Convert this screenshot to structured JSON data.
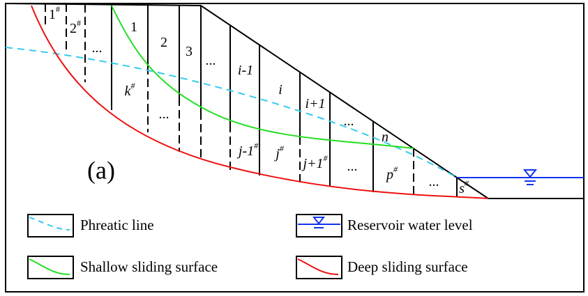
{
  "panel_label": "(a)",
  "upper_slices": [
    {
      "text": "1",
      "sup": "#"
    },
    {
      "text": "2",
      "sup": "#"
    },
    {
      "text": "..."
    },
    {
      "text": "1"
    },
    {
      "text": "2"
    },
    {
      "text": "3"
    },
    {
      "text": "..."
    },
    {
      "text": "i-1"
    },
    {
      "text": "i"
    },
    {
      "text": "i+1"
    },
    {
      "text": "..."
    },
    {
      "text": "n"
    }
  ],
  "lower_slices": [
    {
      "text": "k",
      "sup": "#"
    },
    {
      "text": "..."
    },
    {
      "text": "j-1",
      "sup": "#"
    },
    {
      "text": "j",
      "sup": "#"
    },
    {
      "text": "j+1",
      "sup": "#"
    },
    {
      "text": "..."
    },
    {
      "text": "p",
      "sup": "#"
    },
    {
      "text": "..."
    },
    {
      "text": "s",
      "sup": "#"
    }
  ],
  "legend": [
    "Phreatic line",
    "Reservoir water level",
    "Shallow sliding surface",
    "Deep sliding surface"
  ]
}
